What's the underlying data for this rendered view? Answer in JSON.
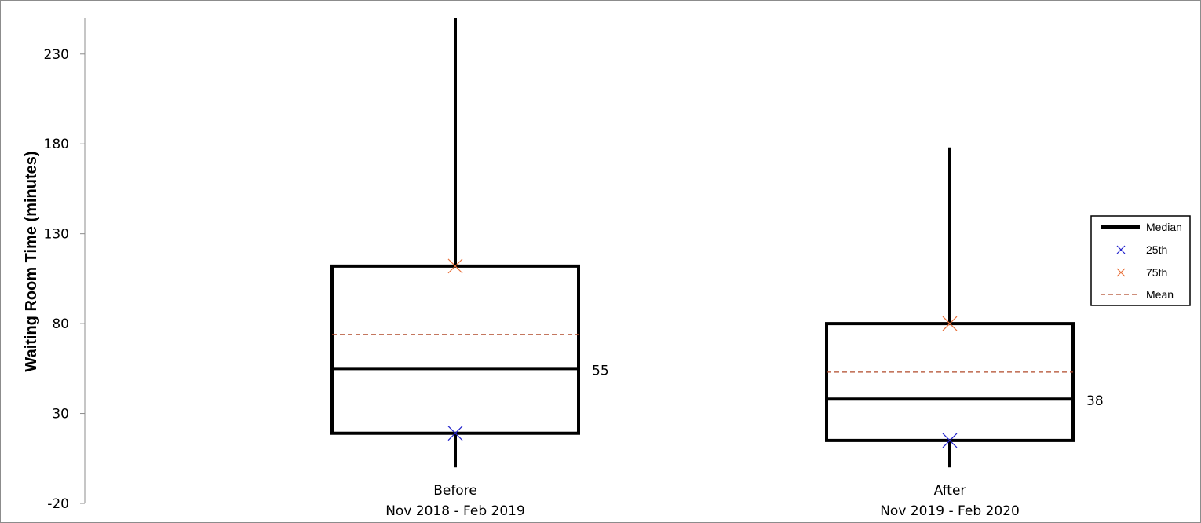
{
  "chart_data": {
    "type": "box",
    "title": "",
    "xlabel": "",
    "ylabel": "Waiting Room Time (minutes)",
    "ylim": [
      -20,
      250
    ],
    "yticks": [
      -20,
      30,
      80,
      130,
      180,
      230
    ],
    "grid": false,
    "legend_position": "right",
    "categories": [
      {
        "line1": "Before",
        "line2": "Nov 2018 - Feb 2019"
      },
      {
        "line1": "After",
        "line2": "Nov 2019 - Feb 2020"
      }
    ],
    "boxes": [
      {
        "min": 0,
        "p25": 19,
        "median": 55,
        "mean": 74,
        "p75": 112,
        "max": 250,
        "median_label": "55"
      },
      {
        "min": 0,
        "p25": 15,
        "median": 38,
        "mean": 53,
        "p75": 80,
        "max": 178,
        "median_label": "38"
      }
    ],
    "legend": [
      {
        "key": "median",
        "label": "Median",
        "color": "#000000"
      },
      {
        "key": "p25",
        "label": "25th",
        "color": "#2222cc"
      },
      {
        "key": "p75",
        "label": "75th",
        "color": "#e8703a"
      },
      {
        "key": "mean",
        "label": "Mean",
        "color": "#b04a2a"
      }
    ]
  }
}
